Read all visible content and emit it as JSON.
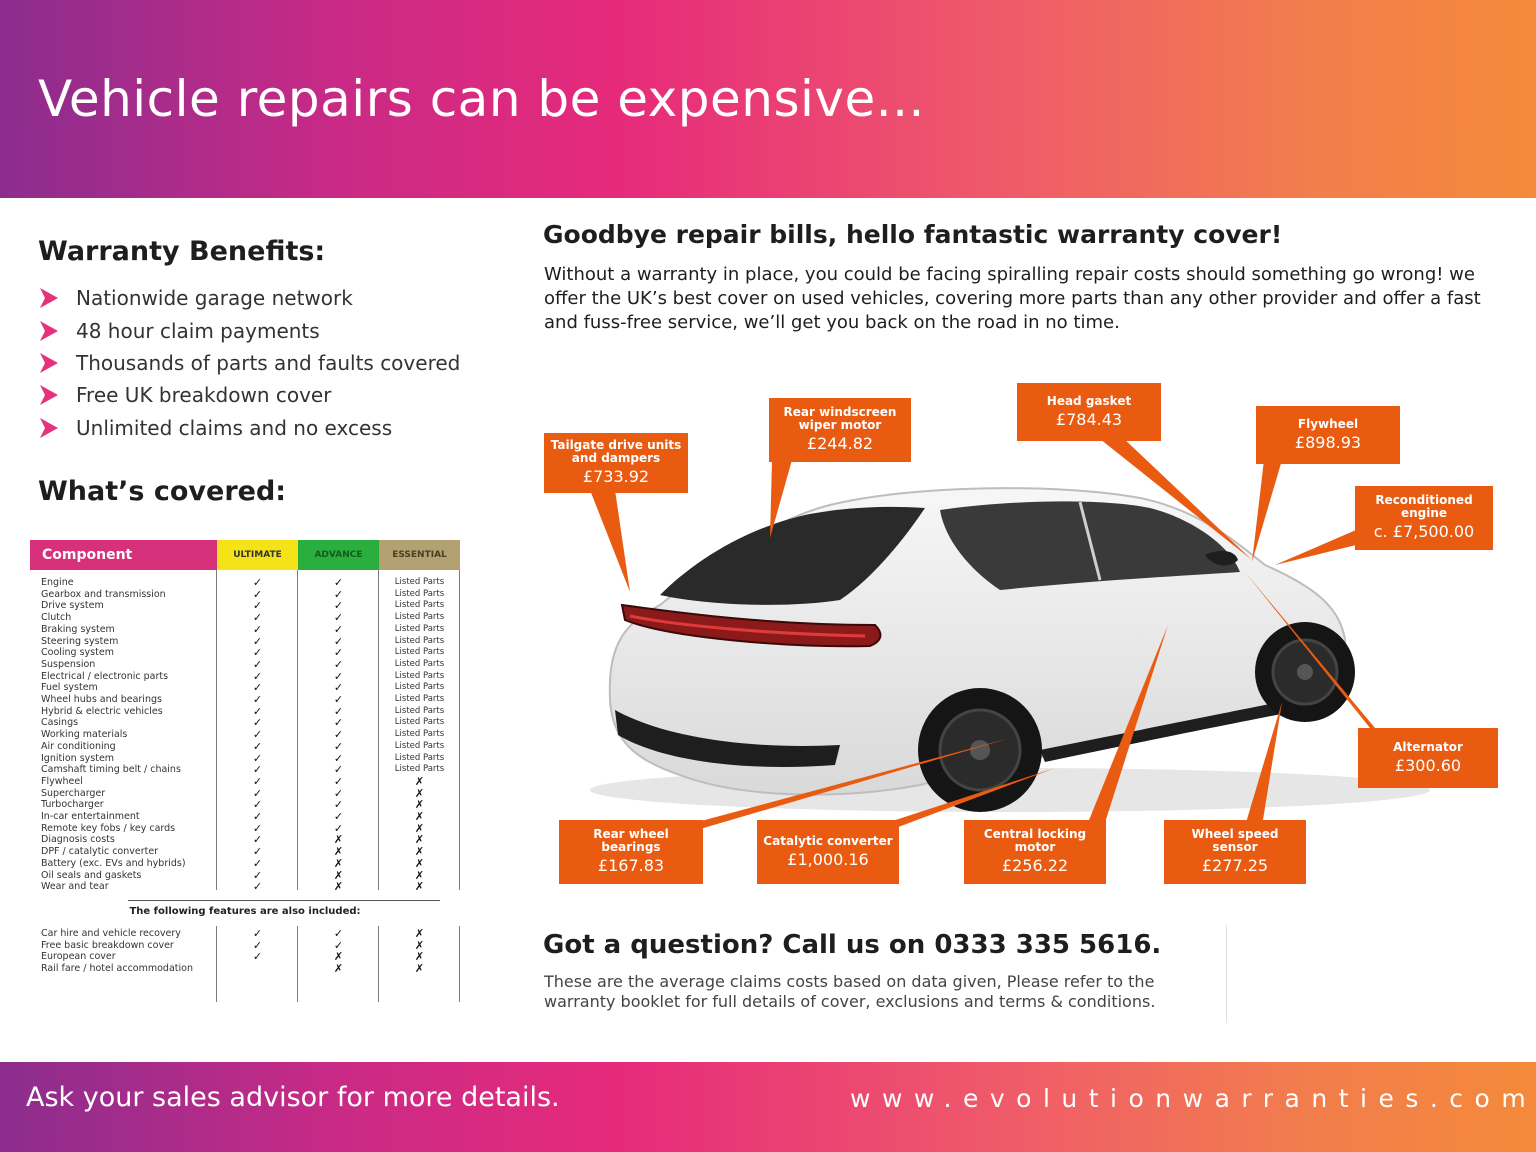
{
  "header": {
    "title": "Vehicle repairs can be expensive..."
  },
  "benefits": {
    "heading": "Warranty Benefits:",
    "items": [
      "Nationwide garage network",
      "48 hour claim payments",
      "Thousands of parts and faults covered",
      "Free UK breakdown cover",
      "Unlimited claims and no excess"
    ]
  },
  "covered": {
    "heading": "What’s covered:",
    "table": {
      "headers": {
        "component": "Component",
        "ultimate": "ULTIMATE",
        "advance": "ADVANCE",
        "essential": "ESSENTIAL"
      },
      "rows": [
        {
          "name": "Engine",
          "ultimate": "✓",
          "advance": "✓",
          "essential": "Listed Parts"
        },
        {
          "name": "Gearbox and transmission",
          "ultimate": "✓",
          "advance": "✓",
          "essential": "Listed Parts"
        },
        {
          "name": "Drive system",
          "ultimate": "✓",
          "advance": "✓",
          "essential": "Listed Parts"
        },
        {
          "name": "Clutch",
          "ultimate": "✓",
          "advance": "✓",
          "essential": "Listed Parts"
        },
        {
          "name": "Braking system",
          "ultimate": "✓",
          "advance": "✓",
          "essential": "Listed Parts"
        },
        {
          "name": "Steering system",
          "ultimate": "✓",
          "advance": "✓",
          "essential": "Listed Parts"
        },
        {
          "name": "Cooling system",
          "ultimate": "✓",
          "advance": "✓",
          "essential": "Listed Parts"
        },
        {
          "name": "Suspension",
          "ultimate": "✓",
          "advance": "✓",
          "essential": "Listed Parts"
        },
        {
          "name": "Electrical / electronic parts",
          "ultimate": "✓",
          "advance": "✓",
          "essential": "Listed Parts"
        },
        {
          "name": "Fuel system",
          "ultimate": "✓",
          "advance": "✓",
          "essential": "Listed Parts"
        },
        {
          "name": "Wheel hubs and bearings",
          "ultimate": "✓",
          "advance": "✓",
          "essential": "Listed Parts"
        },
        {
          "name": "Hybrid & electric vehicles",
          "ultimate": "✓",
          "advance": "✓",
          "essential": "Listed Parts"
        },
        {
          "name": "Casings",
          "ultimate": "✓",
          "advance": "✓",
          "essential": "Listed Parts"
        },
        {
          "name": "Working materials",
          "ultimate": "✓",
          "advance": "✓",
          "essential": "Listed Parts"
        },
        {
          "name": "Air conditioning",
          "ultimate": "✓",
          "advance": "✓",
          "essential": "Listed Parts"
        },
        {
          "name": "Ignition system",
          "ultimate": "✓",
          "advance": "✓",
          "essential": "Listed Parts"
        },
        {
          "name": "Camshaft timing belt / chains",
          "ultimate": "✓",
          "advance": "✓",
          "essential": "Listed Parts"
        },
        {
          "name": "Flywheel",
          "ultimate": "✓",
          "advance": "✓",
          "essential": "✗"
        },
        {
          "name": "Supercharger",
          "ultimate": "✓",
          "advance": "✓",
          "essential": "✗"
        },
        {
          "name": "Turbocharger",
          "ultimate": "✓",
          "advance": "✓",
          "essential": "✗"
        },
        {
          "name": "In-car entertainment",
          "ultimate": "✓",
          "advance": "✓",
          "essential": "✗"
        },
        {
          "name": "Remote key fobs / key cards",
          "ultimate": "✓",
          "advance": "✓",
          "essential": "✗"
        },
        {
          "name": "Diagnosis costs",
          "ultimate": "✓",
          "advance": "✗",
          "essential": "✗"
        },
        {
          "name": "DPF / catalytic converter",
          "ultimate": "✓",
          "advance": "✗",
          "essential": "✗"
        },
        {
          "name": "Battery (exc. EVs and hybrids)",
          "ultimate": "✓",
          "advance": "✗",
          "essential": "✗"
        },
        {
          "name": "Oil seals and gaskets",
          "ultimate": "✓",
          "advance": "✗",
          "essential": "✗"
        },
        {
          "name": "Wear and tear",
          "ultimate": "✓",
          "advance": "✗",
          "essential": "✗"
        }
      ],
      "also_included_label": "The following features are also included:",
      "extras": [
        {
          "name": "Car hire and vehicle recovery",
          "ultimate": "✓",
          "advance": "✓",
          "essential": "✗"
        },
        {
          "name": "Free basic breakdown cover",
          "ultimate": "✓",
          "advance": "✓",
          "essential": "✗"
        },
        {
          "name": "European cover",
          "ultimate": "✓",
          "advance": "✗",
          "essential": "✗"
        },
        {
          "name": "Rail fare / hotel accommodation",
          "ultimate": "",
          "advance": "✗",
          "essential": "✗"
        }
      ]
    }
  },
  "intro": {
    "heading": "Goodbye repair bills, hello fantastic warranty cover!",
    "paragraph": "Without a warranty in place, you could be facing spiralling repair costs should something go wrong! we offer the UK’s best cover on used vehicles, covering more parts than any other provider and offer a fast and fuss-free service, we’ll get you back on the road in no time."
  },
  "repairs": [
    {
      "name": "Tailgate drive units and dampers",
      "price": "£733.92"
    },
    {
      "name": "Rear windscreen wiper motor",
      "price": "£244.82"
    },
    {
      "name": "Head gasket",
      "price": "£784.43"
    },
    {
      "name": "Flywheel",
      "price": "£898.93"
    },
    {
      "name": "Reconditioned engine",
      "price": "c. £7,500.00"
    },
    {
      "name": "Alternator",
      "price": "£300.60"
    },
    {
      "name": "Rear wheel bearings",
      "price": "£167.83"
    },
    {
      "name": "Catalytic converter",
      "price": "£1,000.16"
    },
    {
      "name": "Central locking motor",
      "price": "£256.22"
    },
    {
      "name": "Wheel speed sensor",
      "price": "£277.25"
    }
  ],
  "contact": {
    "heading": "Got a question? Call us on 0333 335 5616.",
    "note": "These are the average claims costs based on data given, Please refer to the warranty booklet for full details of cover, exclusions and terms & conditions."
  },
  "footer": {
    "left": "Ask your sales advisor for more details.",
    "right": "www.evolutionwarranties.com"
  },
  "colors": {
    "gradient_start": "#8b2d8e",
    "gradient_mid": "#e62a7b",
    "gradient_end": "#f48a3a",
    "callout": "#ea5b12",
    "component_header": "#d6317a",
    "ultimate": "#f5e31a",
    "advance": "#2aae3e",
    "essential": "#b3a172"
  },
  "icons": {
    "bullet": "chevron-right-icon",
    "car": "car-illustration"
  }
}
